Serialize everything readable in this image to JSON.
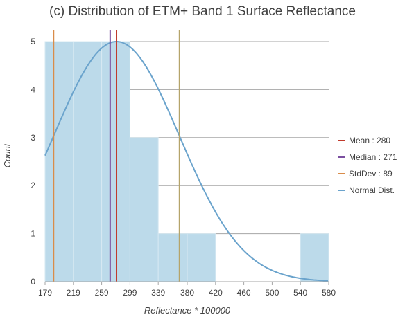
{
  "chart_data": {
    "type": "histogram",
    "title": "(c) Distribution of ETM+ Band 1 Surface Reflectance",
    "xlabel": "Reflectance * 100000",
    "ylabel": "Count",
    "xlim": [
      179,
      580
    ],
    "ylim": [
      0,
      5
    ],
    "x_ticks": [
      "179",
      "219",
      "259",
      "299",
      "339",
      "380",
      "420",
      "460",
      "500",
      "540",
      "580"
    ],
    "y_ticks": [
      "0",
      "1",
      "2",
      "3",
      "4",
      "5"
    ],
    "grid": "horizontal",
    "bins": [
      {
        "start": 179,
        "end": 219,
        "count": 5
      },
      {
        "start": 219,
        "end": 259,
        "count": 5
      },
      {
        "start": 259,
        "end": 299,
        "count": 5
      },
      {
        "start": 299,
        "end": 339,
        "count": 3
      },
      {
        "start": 339,
        "end": 380,
        "count": 1
      },
      {
        "start": 380,
        "end": 420,
        "count": 1
      },
      {
        "start": 420,
        "end": 460,
        "count": 0
      },
      {
        "start": 460,
        "end": 500,
        "count": 0
      },
      {
        "start": 500,
        "end": 540,
        "count": 0
      },
      {
        "start": 540,
        "end": 580,
        "count": 1
      }
    ],
    "reference_lines": [
      {
        "name": "Mean",
        "value": 280,
        "label": "Mean : 280",
        "color": "#c0392b"
      },
      {
        "name": "Median",
        "value": 271,
        "label": "Median : 271",
        "color": "#7b4fa0"
      },
      {
        "name": "StdDev",
        "label": "StdDev : 89",
        "values": [
          191,
          369
        ],
        "colors": [
          "#d98c4a",
          "#b5a46a"
        ]
      }
    ],
    "normal_curve": {
      "label": "Normal Dist.",
      "mean": 280,
      "stddev": 89,
      "peak": 5,
      "color": "#6aa3cc"
    },
    "bar_color": "#bcdaea",
    "legend_position": "right"
  }
}
